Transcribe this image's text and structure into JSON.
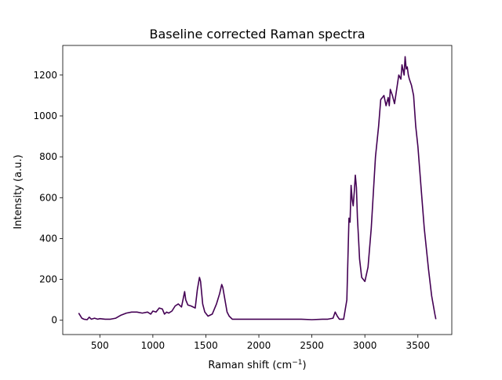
{
  "chart_data": {
    "type": "line",
    "title": "Baseline corrected Raman spectra",
    "xlabel_main": "Raman shift (cm",
    "xlabel_sup": "−1",
    "xlabel_end": ")",
    "ylabel": "Intensity (a.u.)",
    "xlim": [
      150,
      3820
    ],
    "ylim": [
      -70,
      1345
    ],
    "xticks": [
      500,
      1000,
      1500,
      2000,
      2500,
      3000,
      3500
    ],
    "yticks": [
      0,
      200,
      400,
      600,
      800,
      1000,
      1200
    ],
    "grid": false,
    "line_color": "#440154",
    "series": [
      {
        "x": [
          300,
          330,
          350,
          380,
          400,
          420,
          450,
          480,
          500,
          550,
          600,
          650,
          700,
          750,
          800,
          850,
          900,
          950,
          980,
          1000,
          1030,
          1060,
          1090,
          1110,
          1130,
          1150,
          1180,
          1210,
          1240,
          1270,
          1300,
          1310,
          1330,
          1360,
          1400,
          1420,
          1440,
          1450,
          1470,
          1490,
          1520,
          1560,
          1600,
          1630,
          1650,
          1660,
          1680,
          1700,
          1720,
          1750,
          1800,
          1900,
          2000,
          2100,
          2200,
          2300,
          2400,
          2500,
          2600,
          2650,
          2700,
          2720,
          2740,
          2760,
          2800,
          2830,
          2850,
          2860,
          2870,
          2880,
          2890,
          2900,
          2910,
          2920,
          2930,
          2940,
          2950,
          2970,
          3000,
          3030,
          3060,
          3100,
          3130,
          3150,
          3180,
          3200,
          3220,
          3230,
          3240,
          3260,
          3280,
          3300,
          3320,
          3340,
          3350,
          3370,
          3380,
          3390,
          3400,
          3410,
          3420,
          3440,
          3460,
          3480,
          3500,
          3530,
          3560,
          3600,
          3630,
          3660,
          3670
        ],
        "y": [
          35,
          10,
          5,
          3,
          15,
          5,
          10,
          5,
          8,
          5,
          5,
          10,
          25,
          35,
          40,
          40,
          35,
          40,
          30,
          45,
          40,
          60,
          55,
          30,
          40,
          35,
          45,
          70,
          80,
          65,
          140,
          100,
          75,
          70,
          60,
          150,
          210,
          190,
          80,
          40,
          20,
          30,
          80,
          130,
          175,
          160,
          100,
          40,
          20,
          5,
          5,
          5,
          5,
          5,
          5,
          5,
          5,
          3,
          5,
          5,
          10,
          40,
          20,
          5,
          5,
          100,
          500,
          480,
          660,
          590,
          560,
          630,
          710,
          650,
          500,
          400,
          300,
          210,
          190,
          260,
          450,
          800,
          950,
          1080,
          1100,
          1050,
          1090,
          1050,
          1130,
          1100,
          1060,
          1130,
          1200,
          1180,
          1250,
          1200,
          1290,
          1230,
          1240,
          1200,
          1180,
          1150,
          1100,
          950,
          850,
          650,
          450,
          250,
          120,
          30,
          5
        ]
      }
    ]
  }
}
